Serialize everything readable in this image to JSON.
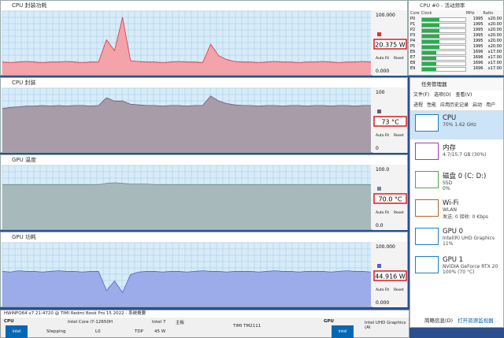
{
  "graph_windows": [
    {
      "title": "CPU 封装功耗",
      "top_label": "100.000",
      "value": "20.375 W",
      "auto_fit": "Auto Fit",
      "reset": "Reset",
      "bottom_label": "0.000",
      "ylim": [
        0,
        100
      ],
      "fill": "#f3a3aa",
      "line": "#e0303c",
      "values": [
        20,
        19,
        20,
        21,
        20,
        19,
        20,
        20,
        21,
        20,
        19,
        20,
        20,
        55,
        38,
        90,
        22,
        21,
        20,
        20,
        19,
        20,
        21,
        20,
        20,
        19,
        48,
        30,
        24,
        21,
        20,
        20,
        19,
        20,
        21,
        20,
        20,
        19,
        20,
        20,
        21,
        20,
        19,
        20,
        20,
        21,
        20
      ]
    },
    {
      "title": "CPU 封装",
      "top_label": "100",
      "value": "73 °C",
      "auto_fit": "Auto Fit",
      "reset": "Reset",
      "bottom_label": "0",
      "ylim": [
        0,
        100
      ],
      "fill": "#a99ca9",
      "line": "#6e5a70",
      "values": [
        68,
        70,
        71,
        72,
        72,
        73,
        72,
        73,
        72,
        73,
        73,
        72,
        73,
        85,
        80,
        80,
        75,
        74,
        73,
        73,
        72,
        73,
        73,
        72,
        73,
        73,
        88,
        80,
        76,
        74,
        73,
        73,
        72,
        73,
        73,
        72,
        73,
        73,
        72,
        73,
        73,
        72,
        73,
        73,
        72,
        73,
        73
      ]
    },
    {
      "title": "GPU 温度",
      "top_label": "100.0",
      "value": "70.0 °C",
      "auto_fit": "Auto Fit",
      "reset": "Reset",
      "bottom_label": "0.0",
      "ylim": [
        0,
        100
      ],
      "fill": "#a7b9ba",
      "line": "#6f8a8c",
      "values": [
        70,
        70,
        70,
        70,
        70,
        70,
        70,
        70,
        70,
        70,
        70,
        70,
        70,
        72,
        73,
        72,
        71,
        71,
        71,
        70,
        70,
        70,
        70,
        70,
        70,
        70,
        70,
        70,
        70,
        70,
        70,
        70,
        70,
        70,
        70,
        70,
        70,
        70,
        70,
        70,
        70,
        70,
        70,
        70,
        70,
        70,
        70
      ]
    },
    {
      "title": "GPU 功耗",
      "top_label": "100.000",
      "value": "44.916 W",
      "auto_fit": "Auto Fit",
      "reset": "Reset",
      "bottom_label": "0.000",
      "ylim": [
        0,
        100
      ],
      "fill": "#9cabe9",
      "line": "#4e64c8",
      "values": [
        55,
        54,
        56,
        55,
        55,
        54,
        55,
        56,
        55,
        55,
        54,
        55,
        55,
        25,
        40,
        22,
        50,
        54,
        55,
        55,
        54,
        55,
        55,
        54,
        55,
        56,
        55,
        55,
        54,
        55,
        55,
        55,
        54,
        55,
        56,
        55,
        55,
        54,
        55,
        55,
        55,
        54,
        55,
        56,
        55,
        55,
        54
      ]
    }
  ],
  "freq_window": {
    "title": "CPU #0 - 活动频率",
    "headers": [
      "Core",
      "Clock",
      "MHz",
      "Ratio"
    ],
    "rows": [
      {
        "core": "P0",
        "mhz": 1995,
        "ratio": "x20.00"
      },
      {
        "core": "P1",
        "mhz": 1995,
        "ratio": "x20.00"
      },
      {
        "core": "P2",
        "mhz": 1995,
        "ratio": "x20.00"
      },
      {
        "core": "P3",
        "mhz": 1995,
        "ratio": "x20.00"
      },
      {
        "core": "P4",
        "mhz": 1995,
        "ratio": "x20.00"
      },
      {
        "core": "P5",
        "mhz": 1995,
        "ratio": "x20.00"
      },
      {
        "core": "E6",
        "mhz": 1696,
        "ratio": "x17.00"
      },
      {
        "core": "E7",
        "mhz": 1696,
        "ratio": "x17.00"
      },
      {
        "core": "E8",
        "mhz": 1696,
        "ratio": "x17.00"
      },
      {
        "core": "E9",
        "mhz": 1696,
        "ratio": "x17.00"
      }
    ]
  },
  "task_manager": {
    "title": "任务管理器",
    "menu": [
      "文件(F)",
      "选项(O)",
      "查看(V)"
    ],
    "tabs": [
      "进程",
      "性能",
      "应用历史记录",
      "启动",
      "用户"
    ],
    "items": [
      {
        "name": "CPU",
        "lines": [
          "70% 1.62 GHz"
        ],
        "color": "#1d7fc4"
      },
      {
        "name": "内存",
        "lines": [
          "4.7/15.7 GB (30%)"
        ],
        "color": "#9b3fb5"
      },
      {
        "name": "磁盘 0 (C: D:)",
        "lines": [
          "SSD",
          "0%"
        ],
        "color": "#4ca84c"
      },
      {
        "name": "Wi-Fi",
        "lines": [
          "WLAN",
          "发送: 0 接收: 0 Kbps"
        ],
        "color": "#b5651d"
      },
      {
        "name": "GPU 0",
        "lines": [
          "Intel(R) UHD Graphics",
          "11%"
        ],
        "color": "#1d7fc4"
      },
      {
        "name": "GPU 1",
        "lines": [
          "NVIDIA GeForce RTX 20",
          "100% (70 °C)"
        ],
        "color": "#1d7fc4"
      }
    ],
    "footer": [
      "简略信息(D)",
      "打开资源监视器"
    ]
  },
  "summary": {
    "title": "HWiNFO64 v7.21-4720 @ TIMI Redmi Book Pro 15 2022 - 系统概要",
    "cpu_label": "CPU",
    "cpu_name": "Intel Core i7-12650H",
    "cpu_node": "Intel 7",
    "stepping": "Stepping",
    "stepping_value": "L0",
    "tdp": "TDP",
    "tdp_value": "45 W",
    "board_label": "主板",
    "board_name": "TIMI TM2111",
    "gpu_label": "GPU",
    "gpu_name": "Intel UHD Graphics (Al"
  }
}
